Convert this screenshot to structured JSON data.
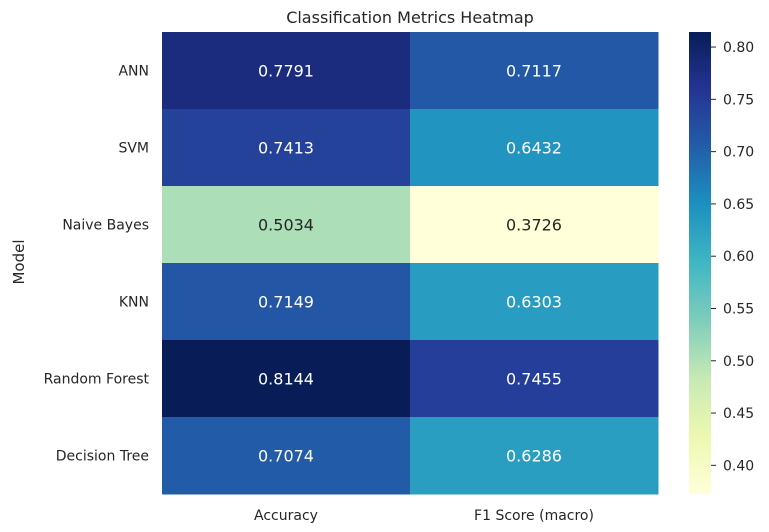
{
  "chart_data": {
    "type": "heatmap",
    "title": "Classification Metrics Heatmap",
    "xlabel": "",
    "ylabel": "Model",
    "rows": [
      "ANN",
      "SVM",
      "Naive Bayes",
      "KNN",
      "Random Forest",
      "Decision Tree"
    ],
    "columns": [
      "Accuracy",
      "F1 Score (macro)"
    ],
    "values": [
      [
        0.7791,
        0.7117
      ],
      [
        0.7413,
        0.6432
      ],
      [
        0.5034,
        0.3726
      ],
      [
        0.7149,
        0.6303
      ],
      [
        0.8144,
        0.7455
      ],
      [
        0.7074,
        0.6286
      ]
    ],
    "value_labels": [
      [
        "0.7791",
        "0.7117"
      ],
      [
        "0.7413",
        "0.6432"
      ],
      [
        "0.5034",
        "0.3726"
      ],
      [
        "0.7149",
        "0.6303"
      ],
      [
        "0.8144",
        "0.7455"
      ],
      [
        "0.7074",
        "0.6286"
      ]
    ],
    "colormap": "YlGnBu",
    "vmin": 0.3726,
    "vmax": 0.8144,
    "colorbar": {
      "ticks": [
        0.4,
        0.45,
        0.5,
        0.55,
        0.6,
        0.65,
        0.7,
        0.75,
        0.8
      ],
      "tick_labels": [
        "0.40",
        "0.45",
        "0.50",
        "0.55",
        "0.60",
        "0.65",
        "0.70",
        "0.75",
        "0.80"
      ],
      "placement": "right"
    },
    "grid": false
  }
}
